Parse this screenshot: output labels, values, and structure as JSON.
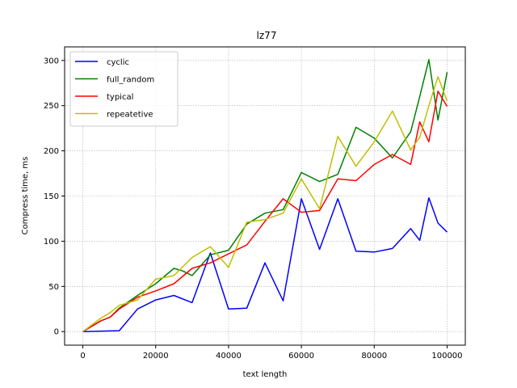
{
  "chart_data": {
    "type": "line",
    "title": "lz77",
    "xlabel": "text length",
    "ylabel": "Compress time, ms",
    "xlim": [
      -5000,
      105000
    ],
    "ylim": [
      -15,
      315
    ],
    "xticks": [
      0,
      20000,
      40000,
      60000,
      80000,
      100000
    ],
    "yticks": [
      0,
      50,
      100,
      150,
      200,
      250,
      300
    ],
    "grid": true,
    "legend_position": "top-left",
    "series": [
      {
        "name": "cyclic",
        "color": "#0000ff",
        "points": [
          [
            0,
            0
          ],
          [
            10000,
            1
          ],
          [
            15000,
            25
          ],
          [
            20000,
            35
          ],
          [
            25000,
            40
          ],
          [
            30000,
            32
          ],
          [
            35000,
            87
          ],
          [
            40000,
            25
          ],
          [
            45000,
            26
          ],
          [
            50000,
            76
          ],
          [
            55000,
            34
          ],
          [
            60000,
            147
          ],
          [
            65000,
            91
          ],
          [
            70000,
            147
          ],
          [
            75000,
            89
          ],
          [
            80000,
            88
          ],
          [
            85000,
            92
          ],
          [
            90000,
            114
          ],
          [
            92500,
            101
          ],
          [
            95000,
            148
          ],
          [
            97500,
            120
          ],
          [
            100000,
            110
          ]
        ]
      },
      {
        "name": "full_random",
        "color": "#008000",
        "points": [
          [
            0,
            0
          ],
          [
            5000,
            12
          ],
          [
            7500,
            16
          ],
          [
            10000,
            26
          ],
          [
            15000,
            40
          ],
          [
            20000,
            53
          ],
          [
            25000,
            70
          ],
          [
            27500,
            67
          ],
          [
            30000,
            62
          ],
          [
            35000,
            85
          ],
          [
            40000,
            90
          ],
          [
            45000,
            119
          ],
          [
            50000,
            131
          ],
          [
            55000,
            135
          ],
          [
            60000,
            176
          ],
          [
            65000,
            166
          ],
          [
            70000,
            174
          ],
          [
            75000,
            226
          ],
          [
            80000,
            214
          ],
          [
            85000,
            192
          ],
          [
            90000,
            221
          ],
          [
            92500,
            260
          ],
          [
            95000,
            301
          ],
          [
            97500,
            234
          ],
          [
            100000,
            287
          ]
        ]
      },
      {
        "name": "typical",
        "color": "#ff0000",
        "points": [
          [
            0,
            0
          ],
          [
            5000,
            12
          ],
          [
            7500,
            16
          ],
          [
            10000,
            25
          ],
          [
            15000,
            38
          ],
          [
            20000,
            45
          ],
          [
            25000,
            53
          ],
          [
            30000,
            70
          ],
          [
            35000,
            76
          ],
          [
            40000,
            86
          ],
          [
            45000,
            96
          ],
          [
            50000,
            122
          ],
          [
            55000,
            147
          ],
          [
            60000,
            132
          ],
          [
            65000,
            134
          ],
          [
            70000,
            169
          ],
          [
            75000,
            167
          ],
          [
            80000,
            185
          ],
          [
            85000,
            196
          ],
          [
            90000,
            185
          ],
          [
            92500,
            232
          ],
          [
            95000,
            210
          ],
          [
            97500,
            266
          ],
          [
            100000,
            249
          ]
        ]
      },
      {
        "name": "repeatetive",
        "color": "#bfbf00",
        "points": [
          [
            0,
            0
          ],
          [
            5000,
            15
          ],
          [
            7500,
            21
          ],
          [
            10000,
            29
          ],
          [
            15000,
            35
          ],
          [
            20000,
            58
          ],
          [
            25000,
            62
          ],
          [
            30000,
            82
          ],
          [
            35000,
            94
          ],
          [
            40000,
            71
          ],
          [
            45000,
            121
          ],
          [
            50000,
            124
          ],
          [
            55000,
            131
          ],
          [
            60000,
            169
          ],
          [
            65000,
            136
          ],
          [
            70000,
            216
          ],
          [
            75000,
            183
          ],
          [
            80000,
            210
          ],
          [
            85000,
            244
          ],
          [
            90000,
            201
          ],
          [
            92500,
            215
          ],
          [
            95000,
            250
          ],
          [
            97500,
            282
          ],
          [
            100000,
            255
          ]
        ]
      }
    ]
  }
}
